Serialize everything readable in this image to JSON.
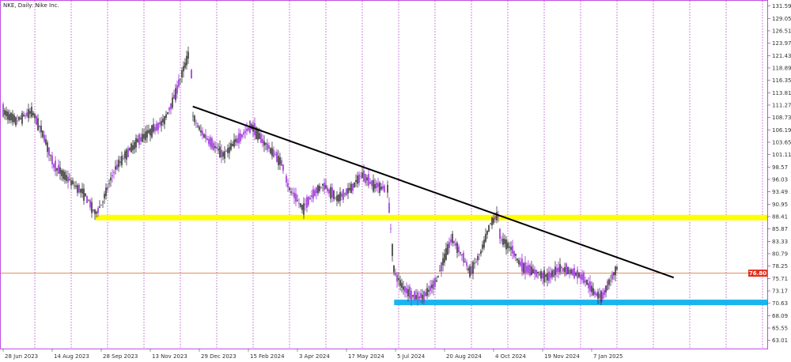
{
  "title": {
    "symbol": "NKE",
    "timeframe": "Daily",
    "name": "Nike Inc."
  },
  "current_price": "76.80",
  "colors": {
    "background": "#ffffff",
    "frame": "#c050e0",
    "grid_vertical": "#a020c0",
    "candle_up": "#9b30d9",
    "candle_down": "#333333",
    "trendline": "#000000",
    "support_upper": "#ffff00",
    "support_lower": "#19b5ee",
    "price_line": "#e08a55",
    "price_tag": "#e03020"
  },
  "chart_data": {
    "type": "candlestick",
    "title": "NKE, Daily:  Nike Inc.",
    "y_tick_labels": [
      "131.59",
      "129.05",
      "126.51",
      "123.97",
      "121.43",
      "118.89",
      "116.35",
      "113.81",
      "111.27",
      "108.73",
      "106.19",
      "103.65",
      "101.11",
      "98.57",
      "96.03",
      "93.49",
      "90.95",
      "88.41",
      "85.87",
      "83.33",
      "80.79",
      "78.25",
      "75.71",
      "73.17",
      "70.63",
      "68.09",
      "65.55",
      "63.01"
    ],
    "x_tick_labels": [
      "28 Jun 2023",
      "14 Aug 2023",
      "28 Sep 2023",
      "13 Nov 2023",
      "29 Dec 2023",
      "15 Feb 2024",
      "3 Apr 2024",
      "17 May 2024",
      "5 Jul 2024",
      "20 Aug 2024",
      "4 Oct 2024",
      "19 Nov 2024",
      "7 Jan 2025"
    ],
    "ylim": [
      61.5,
      132.5
    ],
    "grid": "vertical dotted lines",
    "price_path": [
      [
        "2023-06-28",
        110
      ],
      [
        "2023-07-10",
        108
      ],
      [
        "2023-07-25",
        110
      ],
      [
        "2023-08-05",
        105
      ],
      [
        "2023-08-14",
        99
      ],
      [
        "2023-08-28",
        96
      ],
      [
        "2023-09-12",
        93
      ],
      [
        "2023-09-22",
        89
      ],
      [
        "2023-09-28",
        91
      ],
      [
        "2023-10-10",
        98
      ],
      [
        "2023-10-20",
        101
      ],
      [
        "2023-11-01",
        104
      ],
      [
        "2023-11-13",
        106
      ],
      [
        "2023-11-25",
        108
      ],
      [
        "2023-12-05",
        113
      ],
      [
        "2023-12-14",
        119
      ],
      [
        "2023-12-20",
        123
      ],
      [
        "2023-12-22",
        109
      ],
      [
        "2023-12-29",
        106
      ],
      [
        "2024-01-10",
        103
      ],
      [
        "2024-01-20",
        101
      ],
      [
        "2024-02-01",
        104
      ],
      [
        "2024-02-15",
        107
      ],
      [
        "2024-02-25",
        104
      ],
      [
        "2024-03-08",
        101
      ],
      [
        "2024-03-15",
        99
      ],
      [
        "2024-03-21",
        94
      ],
      [
        "2024-04-03",
        90
      ],
      [
        "2024-04-12",
        93
      ],
      [
        "2024-04-22",
        95
      ],
      [
        "2024-05-05",
        92
      ],
      [
        "2024-05-17",
        94
      ],
      [
        "2024-05-28",
        97
      ],
      [
        "2024-06-07",
        95
      ],
      [
        "2024-06-21",
        94
      ],
      [
        "2024-06-27",
        77
      ],
      [
        "2024-07-05",
        74
      ],
      [
        "2024-07-15",
        72
      ],
      [
        "2024-07-25",
        72
      ],
      [
        "2024-08-05",
        75
      ],
      [
        "2024-08-13",
        80
      ],
      [
        "2024-08-20",
        84
      ],
      [
        "2024-08-28",
        81
      ],
      [
        "2024-09-06",
        77
      ],
      [
        "2024-09-16",
        81
      ],
      [
        "2024-09-25",
        87
      ],
      [
        "2024-10-02",
        89
      ],
      [
        "2024-10-04",
        84
      ],
      [
        "2024-10-14",
        82
      ],
      [
        "2024-10-25",
        78
      ],
      [
        "2024-11-05",
        77
      ],
      [
        "2024-11-19",
        76
      ],
      [
        "2024-11-29",
        78
      ],
      [
        "2024-12-10",
        77
      ],
      [
        "2024-12-20",
        76
      ],
      [
        "2024-12-30",
        73
      ],
      [
        "2025-01-07",
        72
      ],
      [
        "2025-01-14",
        75
      ],
      [
        "2025-01-22",
        78
      ]
    ],
    "trendline": {
      "start": [
        "2023-12-22",
        111
      ],
      "end": [
        "2025-03-15",
        75.9
      ]
    },
    "support_zones": [
      {
        "from": "2023-09-22",
        "to": "2025-03-28",
        "price": 88.2,
        "color": "#ffff00"
      },
      {
        "from": "2024-06-27",
        "to": "2025-03-28",
        "price": 70.8,
        "color": "#19b5ee"
      }
    ],
    "horizontal_line": 76.8
  }
}
